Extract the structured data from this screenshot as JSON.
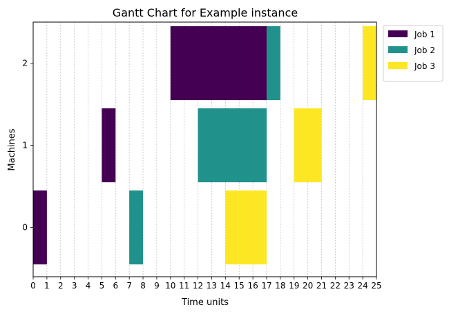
{
  "chart_data": {
    "type": "gantt",
    "title": "Gantt Chart for Example instance",
    "xlabel": "Time units",
    "ylabel": "Machines",
    "xlim": [
      0,
      25
    ],
    "x_ticks": [
      "0",
      "1",
      "2",
      "3",
      "4",
      "5",
      "6",
      "7",
      "8",
      "9",
      "10",
      "11",
      "12",
      "13",
      "14",
      "15",
      "16",
      "17",
      "18",
      "19",
      "20",
      "21",
      "22",
      "23",
      "24",
      "25"
    ],
    "y_ticks": [
      "0",
      "1",
      "2"
    ],
    "ylim": [
      -0.6,
      2.5
    ],
    "grid": "vertical dashed",
    "legend_position": "outside top-right",
    "series": [
      {
        "name": "Job 1",
        "color": "#440154",
        "tasks": [
          {
            "machine": 0,
            "start": 0,
            "end": 1
          },
          {
            "machine": 1,
            "start": 5,
            "end": 6
          },
          {
            "machine": 2,
            "start": 10,
            "end": 17
          }
        ]
      },
      {
        "name": "Job 2",
        "color": "#21918c",
        "tasks": [
          {
            "machine": 0,
            "start": 7,
            "end": 8
          },
          {
            "machine": 1,
            "start": 12,
            "end": 17
          },
          {
            "machine": 2,
            "start": 17,
            "end": 18
          }
        ]
      },
      {
        "name": "Job 3",
        "color": "#fde725",
        "tasks": [
          {
            "machine": 0,
            "start": 14,
            "end": 17
          },
          {
            "machine": 1,
            "start": 19,
            "end": 21
          },
          {
            "machine": 2,
            "start": 24,
            "end": 25
          }
        ]
      }
    ]
  }
}
